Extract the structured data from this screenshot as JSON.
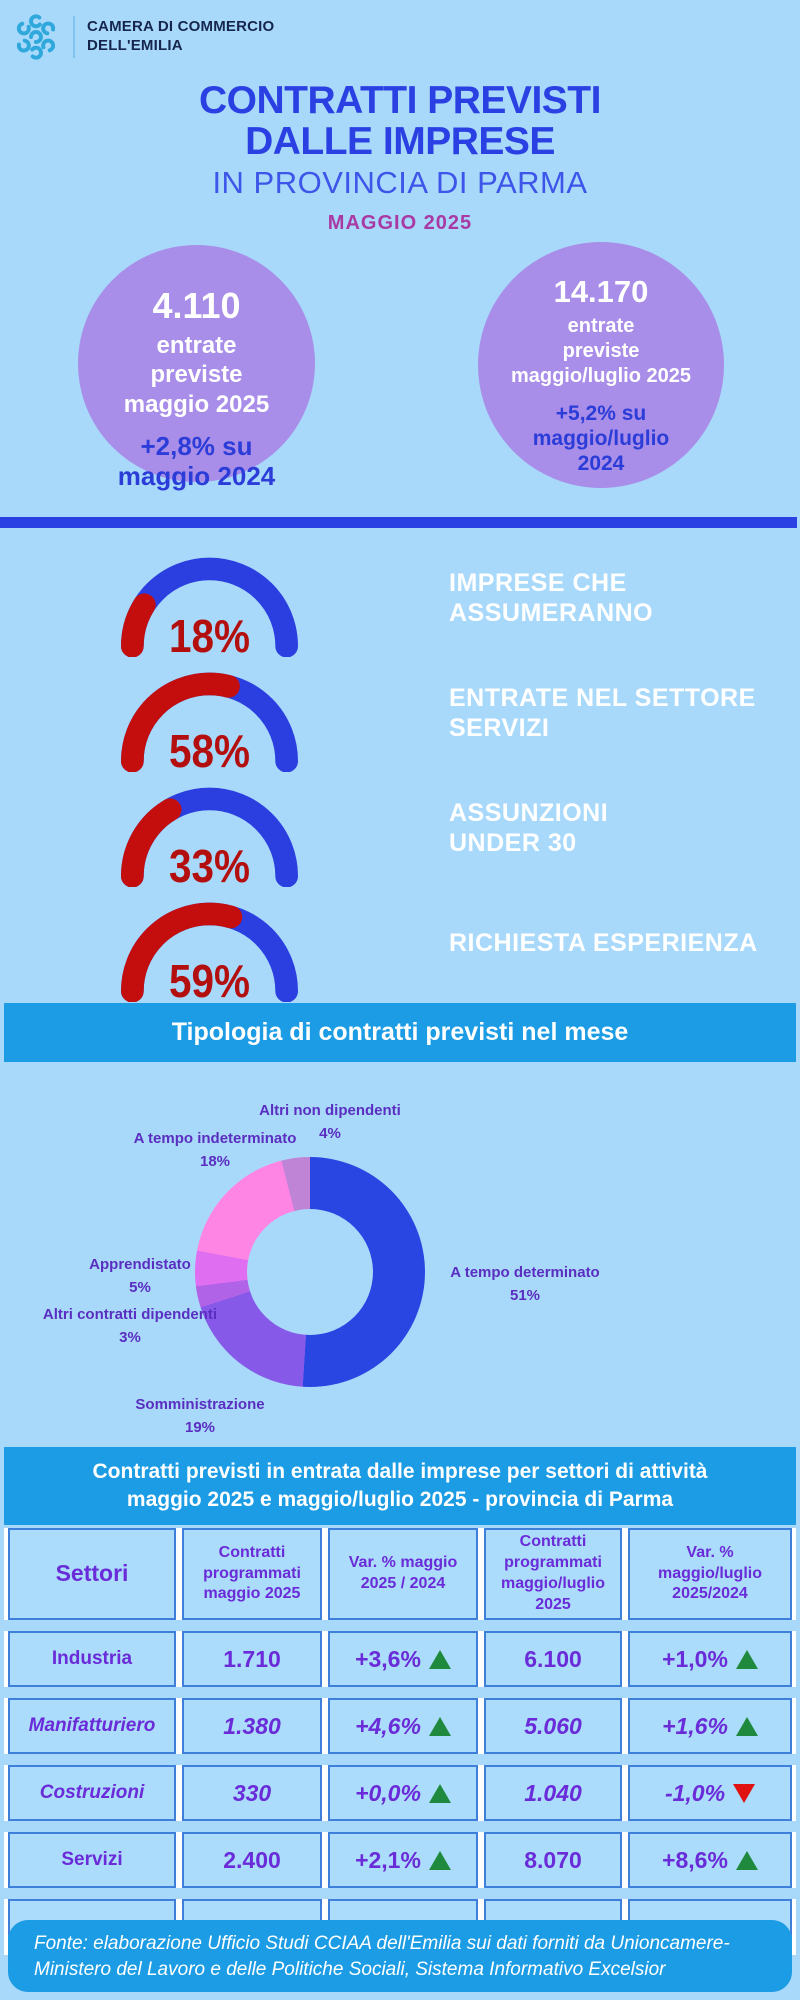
{
  "header": {
    "org": "CAMERA DI COMMERCIO\nDELL'EMILIA"
  },
  "title": {
    "line1": "CONTRATTI PREVISTI",
    "line2": "DALLE IMPRESE",
    "line3": "IN PROVINCIA DI PARMA",
    "period": "MAGGIO 2025"
  },
  "stats": [
    {
      "value": "4.110",
      "label": "entrate\npreviste\nmaggio 2025",
      "delta": "+2,8% su\nmaggio 2024"
    },
    {
      "value": "14.170",
      "label": "entrate\npreviste\nmaggio/luglio 2025",
      "delta": "+5,2% su\nmaggio/luglio\n2024"
    }
  ],
  "gauges": [
    {
      "percent": 18,
      "display": "18%",
      "label": "IMPRESE CHE\nASSUMERANNO"
    },
    {
      "percent": 58,
      "display": "58%",
      "label": "ENTRATE NEL SETTORE\nSERVIZI"
    },
    {
      "percent": 33,
      "display": "33%",
      "label": "ASSUNZIONI\nUNDER 30"
    },
    {
      "percent": 59,
      "display": "59%",
      "label": "RICHIESTA ESPERIENZA"
    }
  ],
  "section_donut_title": "Tipologia di contratti previsti nel mese",
  "chart_data": [
    {
      "type": "pie",
      "title": "Tipologia di contratti previsti nel mese",
      "slices": [
        {
          "label": "A tempo determinato",
          "pct": 51,
          "color": "#2946e2"
        },
        {
          "label": "Somministrazione",
          "pct": 19,
          "color": "#8659e8"
        },
        {
          "label": "Altri contratti dipendenti",
          "pct": 3,
          "color": "#b163e8"
        },
        {
          "label": "Apprendistato",
          "pct": 5,
          "color": "#e06ef0"
        },
        {
          "label": "A tempo indeterminato",
          "pct": 18,
          "color": "#ff85e4"
        },
        {
          "label": "Altri non dipendenti",
          "pct": 4,
          "color": "#bf84d6"
        }
      ],
      "layout": "donut, labels around, starts at 12 o'clock clockwise"
    },
    {
      "type": "bar",
      "title": "Indicatori maggio 2025 (gauge semicircolari)",
      "categories": [
        "Imprese che assumeranno",
        "Entrate nel settore servizi",
        "Assunzioni under 30",
        "Richiesta esperienza"
      ],
      "values": [
        18,
        58,
        33,
        59
      ],
      "ylim": [
        0,
        100
      ]
    },
    {
      "type": "table",
      "title": "Contratti previsti in entrata dalle imprese per settori di attività maggio 2025 e maggio/luglio 2025 - provincia di Parma",
      "columns": [
        "Settori",
        "Contratti programmati maggio 2025",
        "Var. % maggio 2025 / 2024",
        "Contratti programmati maggio/luglio 2025",
        "Var. % maggio/luglio 2025/2024"
      ],
      "rows": [
        [
          "Industria",
          "1.710",
          "+3,6% ▲",
          "6.100",
          "+1,0% ▲"
        ],
        [
          "Manifatturiero",
          "1.380",
          "+4,6% ▲",
          "5.060",
          "+1,6% ▲"
        ],
        [
          "Costruzioni",
          "330",
          "+0,0% ▲",
          "1.040",
          "-1,0% ▼"
        ],
        [
          "Servizi",
          "2.400",
          "+2,1% ▲",
          "8.070",
          "+8,6% ▲"
        ]
      ]
    }
  ],
  "table": {
    "banner": "Contratti previsti in entrata dalle imprese per settori di attività\nmaggio 2025 e maggio/luglio 2025 - provincia di Parma",
    "columns": [
      "Settori",
      "Contratti\nprogrammati\nmaggio 2025",
      "Var. % maggio\n2025 / 2024",
      "Contratti\nprogrammati\nmaggio/luglio\n2025",
      "Var. %\nmaggio/luglio\n2025/2024"
    ],
    "rows": [
      {
        "sector": "Industria",
        "italic": false,
        "contracts_may": "1.710",
        "var_may": "+3,6%",
        "trend_may": "up",
        "contracts_mayjul": "6.100",
        "var_mayjul": "+1,0%",
        "trend_mayjul": "up"
      },
      {
        "sector": "Manifatturiero",
        "italic": true,
        "contracts_may": "1.380",
        "var_may": "+4,6%",
        "trend_may": "up",
        "contracts_mayjul": "5.060",
        "var_mayjul": "+1,6%",
        "trend_mayjul": "up"
      },
      {
        "sector": "Costruzioni",
        "italic": true,
        "contracts_may": "330",
        "var_may": "+0,0%",
        "trend_may": "up",
        "contracts_mayjul": "1.040",
        "var_mayjul": "-1,0%",
        "trend_mayjul": "down"
      },
      {
        "sector": "Servizi",
        "italic": false,
        "contracts_may": "2.400",
        "var_may": "+2,1%",
        "trend_may": "up",
        "contracts_mayjul": "8.070",
        "var_mayjul": "+8,6%",
        "trend_mayjul": "up"
      },
      {
        "sector": "",
        "italic": false,
        "contracts_may": "",
        "var_may": "",
        "trend_may": "",
        "contracts_mayjul": "",
        "var_mayjul": "",
        "trend_mayjul": ""
      }
    ]
  },
  "footer": {
    "text": "Fonte: elaborazione Ufficio Studi CCIAA dell'Emilia sui dati forniti da Unioncamere-Ministero del Lavoro e delle Politiche Sociali, Sistema Informativo Excelsior"
  },
  "colors": {
    "background": "#a8d9fb",
    "accent_blue": "#2b40e2",
    "bright_blue": "#1b9ce4",
    "circle_purple": "#a88ee8",
    "gauge_red": "#c40d0d",
    "gauge_blue": "#2b3fe0",
    "label_purple": "#5a2ec0",
    "table_purple": "#6a2bd8",
    "green_up": "#1f8a3d",
    "red_down": "#e01111"
  }
}
